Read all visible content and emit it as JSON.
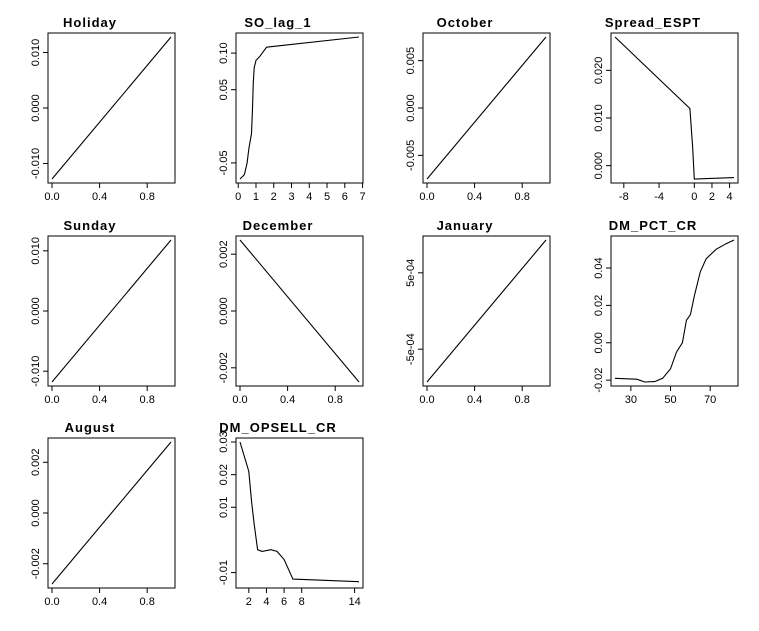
{
  "chart_data": [
    {
      "type": "line",
      "title": "Holiday",
      "x": [
        0,
        1
      ],
      "y": [
        -0.0128,
        0.0128
      ],
      "xlim": [
        0,
        1
      ],
      "ylim": [
        -0.0128,
        0.0128
      ],
      "xticks": [
        0,
        0.4,
        0.8
      ],
      "xtick_labels": [
        "0.0",
        "0.4",
        "0.8"
      ],
      "yticks": [
        -0.01,
        0,
        0.01
      ],
      "ytick_labels": [
        "-0.010",
        "0.000",
        "0.010"
      ]
    },
    {
      "type": "line",
      "title": "SO_lag_1",
      "x": [
        0.1,
        0.35,
        0.5,
        0.6,
        0.75,
        0.8,
        0.85,
        0.9,
        1.0,
        1.2,
        1.6,
        6.8
      ],
      "y": [
        -0.072,
        -0.066,
        -0.05,
        -0.03,
        -0.01,
        0.02,
        0.06,
        0.08,
        0.09,
        0.095,
        0.108,
        0.122
      ],
      "xlim": [
        0.1,
        6.8
      ],
      "ylim": [
        -0.072,
        0.122
      ],
      "xticks": [
        0,
        1,
        2,
        3,
        4,
        5,
        6,
        7
      ],
      "xtick_labels": [
        "0",
        "1",
        "2",
        "3",
        "4",
        "5",
        "6",
        "7"
      ],
      "yticks": [
        -0.05,
        0.05,
        0.1
      ],
      "ytick_labels": [
        "-0.05",
        "0.05",
        "0.10"
      ]
    },
    {
      "type": "line",
      "title": "October",
      "x": [
        0,
        1
      ],
      "y": [
        -0.0075,
        0.0075
      ],
      "xlim": [
        0,
        1
      ],
      "ylim": [
        -0.0075,
        0.0075
      ],
      "xticks": [
        0,
        0.4,
        0.8
      ],
      "xtick_labels": [
        "0.0",
        "0.4",
        "0.8"
      ],
      "yticks": [
        -0.005,
        0,
        0.005
      ],
      "ytick_labels": [
        "-0.005",
        "0.000",
        "0.005"
      ]
    },
    {
      "type": "line",
      "title": "Spread_ESPT",
      "x": [
        -9,
        -0.5,
        -0.2,
        0,
        4.5
      ],
      "y": [
        0.027,
        0.012,
        0.004,
        -0.0028,
        -0.0025
      ],
      "xlim": [
        -9,
        4.5
      ],
      "ylim": [
        -0.0028,
        0.027
      ],
      "xticks": [
        -8,
        -4,
        0,
        2,
        4
      ],
      "xtick_labels": [
        "-8",
        "-4",
        "0",
        "2",
        "4"
      ],
      "yticks": [
        0,
        0.01,
        0.02
      ],
      "ytick_labels": [
        "0.000",
        "0.010",
        "0.020"
      ]
    },
    {
      "type": "line",
      "title": "Sunday",
      "x": [
        0,
        1
      ],
      "y": [
        -0.0118,
        0.0118
      ],
      "xlim": [
        0,
        1
      ],
      "ylim": [
        -0.0118,
        0.0118
      ],
      "xticks": [
        0,
        0.4,
        0.8
      ],
      "xtick_labels": [
        "0.0",
        "0.4",
        "0.8"
      ],
      "yticks": [
        -0.01,
        0,
        0.01
      ],
      "ytick_labels": [
        "-0.010",
        "0.000",
        "0.010"
      ]
    },
    {
      "type": "line",
      "title": "December",
      "x": [
        0,
        1
      ],
      "y": [
        0.0025,
        -0.0025
      ],
      "xlim": [
        0,
        1
      ],
      "ylim": [
        -0.0025,
        0.0025
      ],
      "xticks": [
        0,
        0.4,
        0.8
      ],
      "xtick_labels": [
        "0.0",
        "0.4",
        "0.8"
      ],
      "yticks": [
        -0.002,
        0,
        0.002
      ],
      "ytick_labels": [
        "-0.002",
        "0.000",
        "0.002"
      ]
    },
    {
      "type": "line",
      "title": "January",
      "x": [
        0,
        1
      ],
      "y": [
        -0.00093,
        0.00093
      ],
      "xlim": [
        0,
        1
      ],
      "ylim": [
        -0.00093,
        0.00093
      ],
      "xticks": [
        0,
        0.4,
        0.8
      ],
      "xtick_labels": [
        "0.0",
        "0.4",
        "0.8"
      ],
      "yticks": [
        -0.0005,
        0.0005
      ],
      "ytick_labels": [
        "-5e-04",
        "5e-04"
      ]
    },
    {
      "type": "line",
      "title": "DM_PCT_CR",
      "x": [
        22,
        33,
        37,
        42,
        46,
        50,
        53,
        56,
        58,
        60,
        62,
        65,
        68,
        73,
        78,
        82
      ],
      "y": [
        -0.019,
        -0.0195,
        -0.021,
        -0.0208,
        -0.019,
        -0.014,
        -0.005,
        0.0,
        0.012,
        0.015,
        0.025,
        0.038,
        0.045,
        0.05,
        0.053,
        0.055
      ],
      "xlim": [
        22,
        82
      ],
      "ylim": [
        -0.021,
        0.055
      ],
      "xticks": [
        30,
        50,
        70
      ],
      "xtick_labels": [
        "30",
        "50",
        "70"
      ],
      "yticks": [
        -0.02,
        0,
        0.02,
        0.04
      ],
      "ytick_labels": [
        "-0.02",
        "0.00",
        "0.02",
        "0.04"
      ]
    },
    {
      "type": "line",
      "title": "August",
      "x": [
        0,
        1
      ],
      "y": [
        -0.0028,
        0.0028
      ],
      "xlim": [
        0,
        1
      ],
      "ylim": [
        -0.0028,
        0.0028
      ],
      "xticks": [
        0,
        0.4,
        0.8
      ],
      "xtick_labels": [
        "0.0",
        "0.4",
        "0.8"
      ],
      "yticks": [
        -0.002,
        0,
        0.002
      ],
      "ytick_labels": [
        "-0.002",
        "0.000",
        "0.002"
      ]
    },
    {
      "type": "line",
      "title": "DM_OPSELL_CR",
      "x": [
        1,
        2,
        2.3,
        2.6,
        3,
        3.5,
        4.5,
        5.2,
        6,
        7,
        14.5
      ],
      "y": [
        0.03,
        0.021,
        0.012,
        0.005,
        -0.003,
        -0.0035,
        -0.003,
        -0.0035,
        -0.006,
        -0.012,
        -0.0128
      ],
      "xlim": [
        1,
        14.5
      ],
      "ylim": [
        -0.0135,
        0.03
      ],
      "xticks": [
        2,
        4,
        6,
        8,
        14
      ],
      "xtick_labels": [
        "2",
        "4",
        "6",
        "8",
        "14"
      ],
      "yticks": [
        -0.01,
        0.01,
        0.02,
        0.03
      ],
      "ytick_labels": [
        "-0.01",
        "0.01",
        "0.02",
        "0.03"
      ]
    }
  ]
}
